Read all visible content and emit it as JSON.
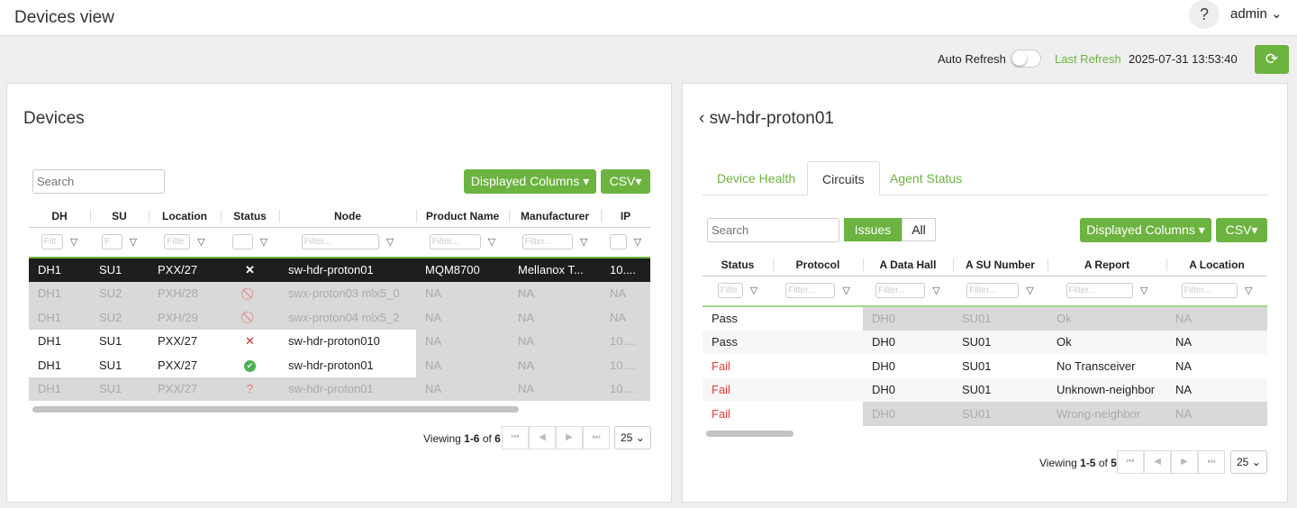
{
  "header": {
    "title": "Devices view",
    "help": "?",
    "user": "admin"
  },
  "refresh": {
    "auto_label": "Auto Refresh",
    "auto_on": false,
    "last_label": "Last Refresh",
    "last_value": "2025-07-31 13:53:40"
  },
  "colors": {
    "accent": "#6cb33f",
    "fail": "#e53935",
    "selected": "#1e1e1e"
  },
  "devices": {
    "title": "Devices",
    "search_placeholder": "Search",
    "columns_btn": "Displayed Columns ▾",
    "csv_btn": "CSV▾",
    "columns": [
      "DH",
      "SU",
      "Location",
      "Status",
      "Node",
      "Product Name",
      "Manufacturer",
      "IP"
    ],
    "filters": [
      "Filt",
      "F",
      "Filte",
      "",
      "Filter...",
      "Filter...",
      "Filter...",
      ""
    ],
    "rows": [
      {
        "cells": [
          "DH1",
          "SU1",
          "PXX/27",
          "x-icon",
          "sw-hdr-proton01",
          "MQM8700",
          "Mellanox T...",
          "10...."
        ],
        "style": "selected"
      },
      {
        "cells": [
          "DH1",
          "SU2",
          "PXH/28",
          "blocked-icon",
          "swx-proton03 mlx5_0",
          "NA",
          "NA",
          "NA"
        ],
        "style": "disabled"
      },
      {
        "cells": [
          "DH1",
          "SU2",
          "PXH/29",
          "blocked-icon",
          "swx-proton04 mlx5_2",
          "NA",
          "NA",
          "NA"
        ],
        "style": "disabled"
      },
      {
        "cells": [
          "DH1",
          "SU1",
          "PXX/27",
          "x-red-icon",
          "sw-hdr-proton010",
          "NA",
          "NA",
          "10...."
        ],
        "style": "partial"
      },
      {
        "cells": [
          "DH1",
          "SU1",
          "PXX/27",
          "check-circle-icon",
          "sw-hdr-proton01",
          "NA",
          "NA",
          "10...."
        ],
        "style": "partial"
      },
      {
        "cells": [
          "DH1",
          "SU1",
          "PXX/27",
          "question-icon",
          "sw-hdr-proton01",
          "NA",
          "NA",
          "10...."
        ],
        "style": "disabled"
      }
    ],
    "pager": {
      "prefix": "Viewing ",
      "range": "1-6",
      "of": " of ",
      "total": "6",
      "page_size": "25"
    }
  },
  "detail": {
    "title": "sw-hdr-proton01",
    "tabs": [
      "Device Health",
      "Circuits",
      "Agent Status"
    ],
    "active_tab": 1,
    "search_placeholder": "Search",
    "issues": "Issues",
    "all": "All",
    "columns_btn": "Displayed Columns ▾",
    "csv_btn": "CSV▾",
    "columns": [
      "Status",
      "Protocol",
      "A Data Hall",
      "A SU Number",
      "A Report",
      "A Location"
    ],
    "filters": [
      "Filte",
      "Filter...",
      "Filter...",
      "Filter...",
      "Filter...",
      "Filter..."
    ],
    "rows": [
      {
        "cells": [
          "Pass",
          "",
          "DH0",
          "SU01",
          "Ok",
          "NA"
        ],
        "style": "disabled"
      },
      {
        "cells": [
          "Pass",
          "",
          "DH0",
          "SU01",
          "Ok",
          "NA"
        ],
        "style": "normal"
      },
      {
        "cells": [
          "Fail",
          "",
          "DH0",
          "SU01",
          "No Transceiver",
          "NA"
        ],
        "style": "normal"
      },
      {
        "cells": [
          "Fail",
          "",
          "DH0",
          "SU01",
          "Unknown-neighbor",
          "NA"
        ],
        "style": "normal"
      },
      {
        "cells": [
          "Fail",
          "",
          "DH0",
          "SU01",
          "Wrong-neighbor",
          "NA"
        ],
        "style": "disabled"
      }
    ],
    "pager": {
      "prefix": "Viewing ",
      "range": "1-5",
      "of": " of ",
      "total": "5",
      "page_size": "25"
    }
  }
}
